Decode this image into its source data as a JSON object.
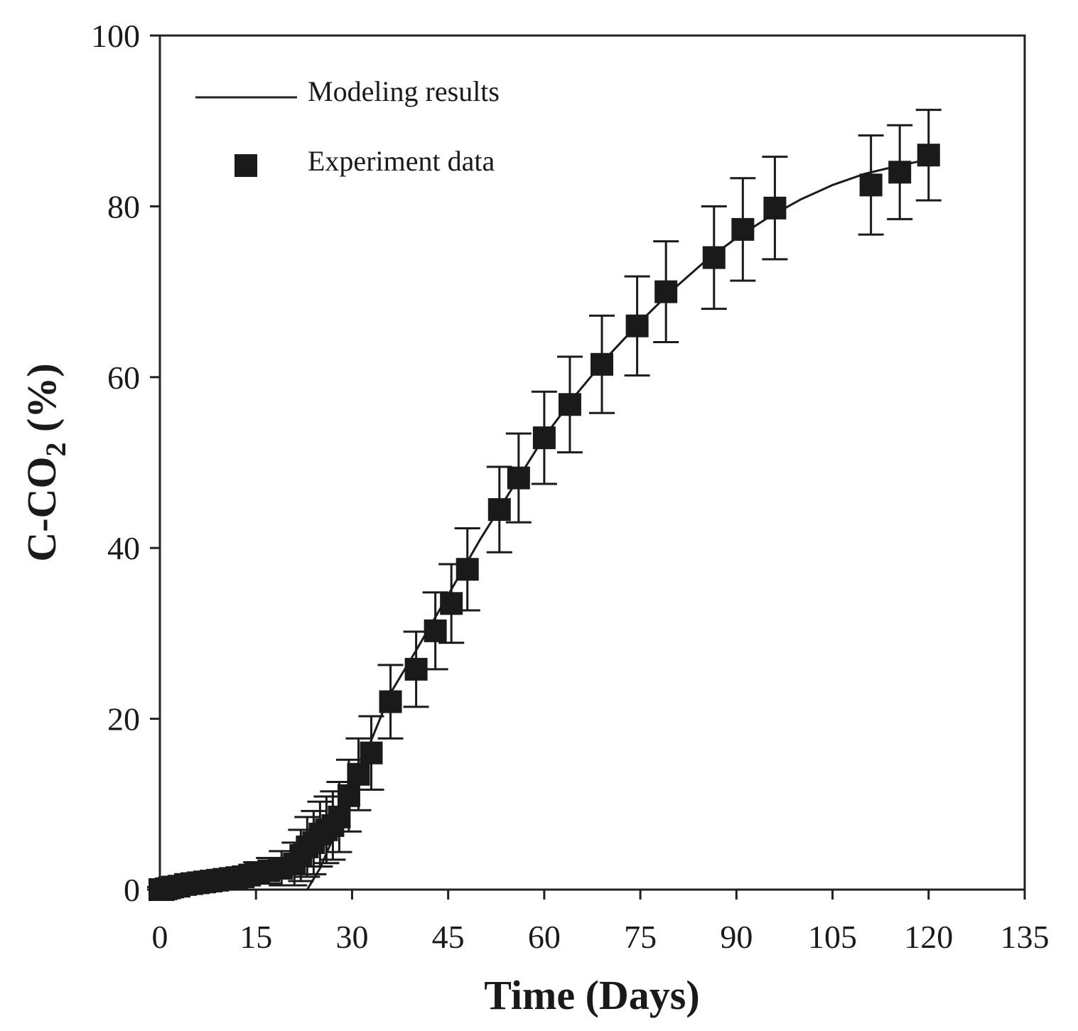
{
  "chart_data": {
    "type": "scatter",
    "title": "",
    "xlabel": "Time (Days)",
    "ylabel_main": "C-CO",
    "ylabel_sub": "2",
    "ylabel_suffix": " (%)",
    "xlim": [
      0,
      135
    ],
    "ylim": [
      0,
      100
    ],
    "xticks": [
      0,
      15,
      30,
      45,
      60,
      75,
      90,
      105,
      120,
      135
    ],
    "yticks": [
      0,
      20,
      40,
      60,
      80,
      100
    ],
    "xtick_labels": [
      "0",
      "15",
      "30",
      "45",
      "60",
      "75",
      "90",
      "105",
      "120",
      "135"
    ],
    "ytick_labels": [
      "0",
      "20",
      "40",
      "60",
      "80",
      "100"
    ],
    "grid": false,
    "legend_position": "top-left",
    "legend": {
      "line_label": "Modeling results",
      "marker_label": "Experiment data"
    },
    "series": [
      {
        "name": "Modeling results",
        "kind": "line",
        "x": [
          0,
          5,
          10,
          15,
          20,
          23,
          25,
          27,
          30,
          33,
          36,
          40,
          45,
          50,
          55,
          60,
          65,
          70,
          75,
          80,
          85,
          90,
          95,
          100,
          105,
          110,
          115,
          120
        ],
        "y": [
          0,
          0,
          0,
          0,
          0,
          0,
          2.5,
          6,
          12,
          17.5,
          23,
          28,
          34.5,
          41,
          47,
          53,
          58,
          62.5,
          66.5,
          70.2,
          73.5,
          76.3,
          78.7,
          80.8,
          82.5,
          83.8,
          84.7,
          85.5
        ]
      },
      {
        "name": "Experiment data",
        "kind": "scatter",
        "x": [
          0,
          0.5,
          1,
          1.5,
          2,
          3,
          4,
          5,
          6,
          7,
          8,
          9,
          10,
          11,
          12,
          13,
          14,
          15,
          17,
          19,
          21,
          22,
          23,
          24,
          25,
          26,
          27,
          28,
          29.5,
          31,
          33,
          36,
          40,
          43,
          45.5,
          48,
          53,
          56,
          60,
          64,
          69,
          74.5,
          79,
          86.5,
          91,
          96,
          111,
          115.5,
          120
        ],
        "y": [
          0,
          0,
          0.1,
          0.2,
          0.3,
          0.4,
          0.6,
          0.7,
          0.8,
          0.9,
          1.0,
          1.1,
          1.2,
          1.3,
          1.4,
          1.5,
          1.7,
          2.0,
          2.2,
          2.5,
          3.0,
          4.0,
          5.0,
          5.5,
          6.5,
          7.0,
          7.5,
          8.5,
          11.0,
          13.5,
          16.0,
          22.0,
          25.8,
          30.3,
          33.5,
          37.5,
          44.5,
          48.2,
          52.9,
          56.8,
          61.5,
          66.0,
          70.0,
          74.0,
          77.3,
          79.8,
          82.5,
          84.0,
          86.0
        ],
        "err": [
          0.3,
          0.3,
          0.3,
          0.3,
          0.3,
          0.3,
          0.3,
          0.3,
          0.3,
          0.3,
          0.3,
          0.3,
          0.3,
          0.3,
          0.4,
          0.5,
          0.8,
          1.2,
          1.5,
          2.0,
          2.5,
          3.0,
          3.5,
          3.7,
          3.8,
          3.9,
          4.0,
          4.1,
          4.2,
          4.2,
          4.3,
          4.3,
          4.4,
          4.5,
          4.6,
          4.8,
          5.0,
          5.2,
          5.4,
          5.6,
          5.7,
          5.8,
          5.9,
          6.0,
          6.0,
          6.0,
          5.8,
          5.5,
          5.3
        ]
      }
    ]
  }
}
